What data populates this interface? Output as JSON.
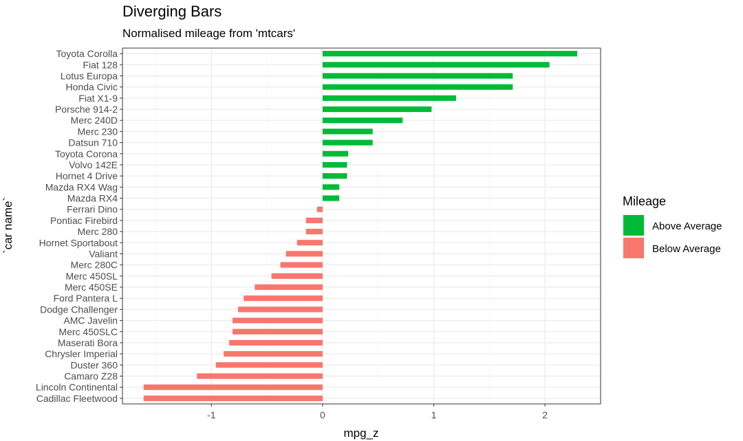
{
  "chart_data": {
    "type": "bar",
    "orientation": "horizontal",
    "title": "Diverging Bars",
    "subtitle": "Normalised mileage from 'mtcars'",
    "xlabel": "mpg_z",
    "ylabel": "`car name`",
    "xlim": [
      -1.8,
      2.5
    ],
    "x_ticks": [
      -1,
      0,
      1,
      2
    ],
    "x_tick_labels": [
      "-1",
      "0",
      "1",
      "2"
    ],
    "grid": true,
    "legend": {
      "title": "Mileage",
      "position": "right",
      "entries": [
        {
          "label": "Above Average",
          "color": "#00BA38"
        },
        {
          "label": "Below Average",
          "color": "#F8766D"
        }
      ]
    },
    "categories": [
      "Toyota Corolla",
      "Fiat 128",
      "Lotus Europa",
      "Honda Civic",
      "Fiat X1-9",
      "Porsche 914-2",
      "Merc 240D",
      "Merc 230",
      "Datsun 710",
      "Toyota Corona",
      "Volvo 142E",
      "Hornet 4 Drive",
      "Mazda RX4 Wag",
      "Mazda RX4",
      "Ferrari Dino",
      "Pontiac Firebird",
      "Merc 280",
      "Hornet Sportabout",
      "Valiant",
      "Merc 280C",
      "Merc 450SL",
      "Merc 450SE",
      "Ford Pantera L",
      "Dodge Challenger",
      "AMC Javelin",
      "Merc 450SLC",
      "Maserati Bora",
      "Chrysler Imperial",
      "Duster 360",
      "Camaro Z28",
      "Lincoln Continental",
      "Cadillac Fleetwood"
    ],
    "values": [
      2.29,
      2.04,
      1.71,
      1.71,
      1.2,
      0.98,
      0.72,
      0.45,
      0.45,
      0.23,
      0.22,
      0.22,
      0.15,
      0.15,
      -0.05,
      -0.15,
      -0.15,
      -0.23,
      -0.33,
      -0.38,
      -0.46,
      -0.61,
      -0.71,
      -0.76,
      -0.81,
      -0.81,
      -0.84,
      -0.89,
      -0.96,
      -1.13,
      -1.61,
      -1.61
    ],
    "groups": [
      "Above Average",
      "Above Average",
      "Above Average",
      "Above Average",
      "Above Average",
      "Above Average",
      "Above Average",
      "Above Average",
      "Above Average",
      "Above Average",
      "Above Average",
      "Above Average",
      "Above Average",
      "Above Average",
      "Below Average",
      "Below Average",
      "Below Average",
      "Below Average",
      "Below Average",
      "Below Average",
      "Below Average",
      "Below Average",
      "Below Average",
      "Below Average",
      "Below Average",
      "Below Average",
      "Below Average",
      "Below Average",
      "Below Average",
      "Below Average",
      "Below Average",
      "Below Average"
    ]
  },
  "colors": {
    "above": "#00BA38",
    "below": "#F8766D",
    "grid_major": "#EBEBEB",
    "grid_minor": "#F4F4F4",
    "panel_border": "#333333"
  }
}
